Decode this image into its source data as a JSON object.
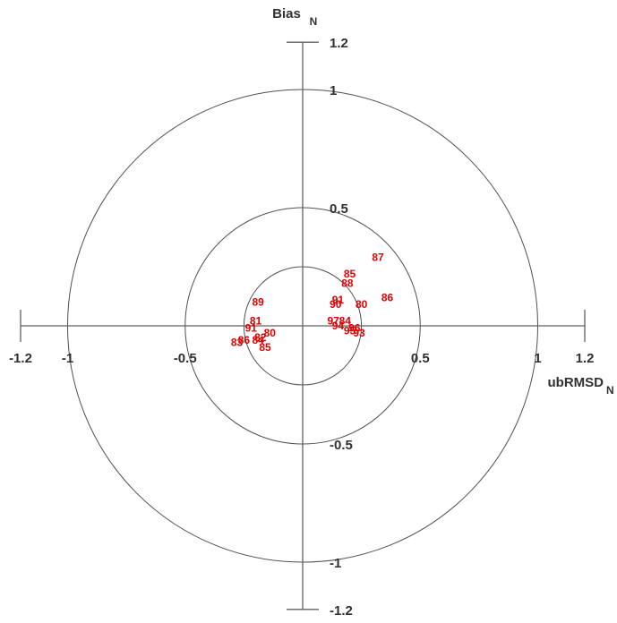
{
  "chart_data": {
    "type": "scatter",
    "title": "",
    "xlabel": {
      "main": "ubRMSD",
      "sub": "N"
    },
    "ylabel": {
      "main": "Bias",
      "sub": "N"
    },
    "xlim": [
      -1.2,
      1.2
    ],
    "ylim": [
      -1.2,
      1.2
    ],
    "grid": false,
    "circles": [
      0.25,
      0.5,
      1.0
    ],
    "x_ticks": [
      {
        "value": -1.2,
        "label": "-1.2"
      },
      {
        "value": -1.0,
        "label": "-1"
      },
      {
        "value": -0.5,
        "label": "-0.5"
      },
      {
        "value": 0.5,
        "label": "0.5"
      },
      {
        "value": 1.0,
        "label": "1"
      },
      {
        "value": 1.2,
        "label": "1.2"
      }
    ],
    "y_ticks": [
      {
        "value": 1.2,
        "label": "1.2"
      },
      {
        "value": 1.0,
        "label": "1"
      },
      {
        "value": 0.5,
        "label": "0.5"
      },
      {
        "value": -0.5,
        "label": "-0.5"
      },
      {
        "value": -1.0,
        "label": "-1"
      },
      {
        "value": -1.2,
        "label": "-1.2"
      }
    ],
    "marker_color": "#e00000",
    "points": [
      {
        "label": "87",
        "x": 0.32,
        "y": 0.29
      },
      {
        "label": "85",
        "x": 0.2,
        "y": 0.22
      },
      {
        "label": "88",
        "x": 0.19,
        "y": 0.18
      },
      {
        "label": "86",
        "x": 0.36,
        "y": 0.12
      },
      {
        "label": "91",
        "x": 0.15,
        "y": 0.11
      },
      {
        "label": "90",
        "x": 0.14,
        "y": 0.09
      },
      {
        "label": "80",
        "x": 0.25,
        "y": 0.09
      },
      {
        "label": "97",
        "x": 0.13,
        "y": 0.02
      },
      {
        "label": "84",
        "x": 0.18,
        "y": 0.02
      },
      {
        "label": "94",
        "x": 0.15,
        "y": 0.0
      },
      {
        "label": "96",
        "x": 0.22,
        "y": -0.01
      },
      {
        "label": "95",
        "x": 0.2,
        "y": -0.02
      },
      {
        "label": "93",
        "x": 0.24,
        "y": -0.03
      },
      {
        "label": "89",
        "x": -0.19,
        "y": 0.1
      },
      {
        "label": "81",
        "x": -0.2,
        "y": 0.02
      },
      {
        "label": "91",
        "x": -0.22,
        "y": -0.01
      },
      {
        "label": "80",
        "x": -0.14,
        "y": -0.03
      },
      {
        "label": "82",
        "x": -0.18,
        "y": -0.05
      },
      {
        "label": "83",
        "x": -0.28,
        "y": -0.07
      },
      {
        "label": "86",
        "x": -0.25,
        "y": -0.06
      },
      {
        "label": "84",
        "x": -0.19,
        "y": -0.06
      },
      {
        "label": "85",
        "x": -0.16,
        "y": -0.09
      }
    ]
  }
}
